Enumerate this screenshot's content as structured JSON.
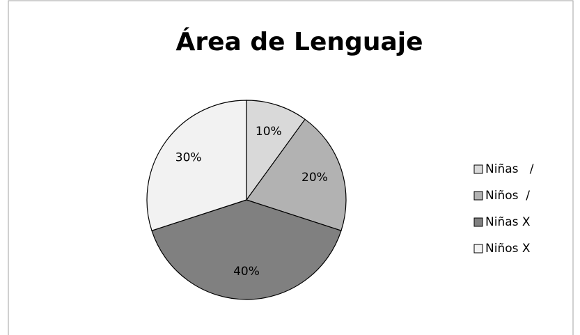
{
  "chart_data": {
    "type": "pie",
    "title": "Área de Lenguaje",
    "categories": [
      "Niñas   /",
      "Niños  /",
      "Niñas X",
      "Niños X"
    ],
    "values": [
      10,
      20,
      40,
      30
    ],
    "value_labels": [
      "10%",
      "20%",
      "40%",
      "30%"
    ],
    "colors": [
      "#d9d9d9",
      "#b2b2b2",
      "#808080",
      "#f2f2f2"
    ],
    "legend": "right"
  }
}
